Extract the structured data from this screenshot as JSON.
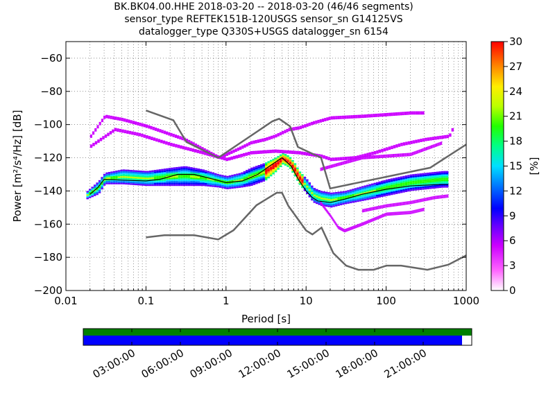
{
  "header": {
    "line1": "BK.BK04.00.HHE   2018-03-20 -- 2018-03-20  (46/46 segments)",
    "line2": "sensor_type REFTEK151B-120USGS sensor_sn G14125VS",
    "line3": "datalogger_type Q330S+USGS datalogger_sn 6154"
  },
  "chart_data": [
    {
      "type": "heatmap",
      "title": "",
      "xlabel": "Period [s]",
      "ylabel": "Power [m²/s⁴/Hz] [dB]",
      "x_scale": "log",
      "xlim": [
        0.01,
        1000
      ],
      "ylim": [
        -200,
        -50
      ],
      "x_ticks": [
        "0.01",
        "0.1",
        "1",
        "10",
        "100",
        "1000"
      ],
      "y_ticks": [
        "−200",
        "−180",
        "−160",
        "−140",
        "−120",
        "−100",
        "−80",
        "−60"
      ],
      "grid": true,
      "colorbar": {
        "label": "[%]",
        "range": [
          0,
          30
        ],
        "ticks": [
          "0",
          "3",
          "6",
          "9",
          "12",
          "15",
          "18",
          "21",
          "24",
          "27",
          "30"
        ]
      },
      "colors": {
        "nhnm_nlnm": "#666666",
        "mode_line": "#000000",
        "grid": "#000000"
      },
      "reference_curves": [
        {
          "name": "NHNM",
          "points": [
            [
              0.1,
              -91.5
            ],
            [
              0.22,
              -97.4
            ],
            [
              0.32,
              -110.5
            ],
            [
              0.8,
              -120
            ],
            [
              3.8,
              -98
            ],
            [
              4.6,
              -96.5
            ],
            [
              6.3,
              -101
            ],
            [
              7.9,
              -113.5
            ],
            [
              15.4,
              -120
            ],
            [
              20,
              -138.5
            ],
            [
              354.8,
              -126
            ],
            [
              1000,
              -112
            ]
          ]
        },
        {
          "name": "NLNM",
          "points": [
            [
              0.1,
              -168
            ],
            [
              0.17,
              -166.7
            ],
            [
              0.4,
              -166.7
            ],
            [
              0.8,
              -169.2
            ],
            [
              1.24,
              -163.7
            ],
            [
              2.4,
              -148.6
            ],
            [
              4.3,
              -141.1
            ],
            [
              5,
              -141.1
            ],
            [
              6,
              -149
            ],
            [
              10,
              -163.8
            ],
            [
              12,
              -166.2
            ],
            [
              15.6,
              -162.1
            ],
            [
              21.9,
              -177.5
            ],
            [
              31.6,
              -185
            ],
            [
              45,
              -187.5
            ],
            [
              70,
              -187.5
            ],
            [
              101,
              -185
            ],
            [
              154,
              -185
            ],
            [
              328,
              -187.5
            ],
            [
              600,
              -184.4
            ],
            [
              1000,
              -178.8
            ]
          ]
        }
      ],
      "mode_line": [
        [
          0.02,
          -142
        ],
        [
          0.025,
          -138
        ],
        [
          0.03,
          -133
        ],
        [
          0.05,
          -133.5
        ],
        [
          0.1,
          -134
        ],
        [
          0.15,
          -133
        ],
        [
          0.25,
          -130
        ],
        [
          0.4,
          -130
        ],
        [
          0.7,
          -133
        ],
        [
          1,
          -135
        ],
        [
          1.6,
          -134
        ],
        [
          2.5,
          -130
        ],
        [
          3.5,
          -125
        ],
        [
          5,
          -120
        ],
        [
          6.5,
          -125
        ],
        [
          8,
          -133
        ],
        [
          10,
          -140
        ],
        [
          12,
          -144
        ],
        [
          14,
          -146
        ],
        [
          20,
          -147
        ],
        [
          30,
          -145
        ],
        [
          50,
          -142
        ],
        [
          100,
          -139
        ],
        [
          200,
          -137
        ],
        [
          500,
          -136
        ],
        [
          600,
          -136
        ]
      ],
      "ppsd_bands": [
        {
          "name": "main",
          "points": [
            [
              0.018,
              -145,
              -140
            ],
            [
              0.025,
              -142,
              -134
            ],
            [
              0.03,
              -136,
              -129
            ],
            [
              0.05,
              -136,
              -127
            ],
            [
              0.1,
              -137,
              -128
            ],
            [
              0.2,
              -137,
              -126
            ],
            [
              0.3,
              -137,
              -125
            ],
            [
              0.5,
              -137,
              -127
            ],
            [
              0.8,
              -138,
              -130
            ],
            [
              1,
              -139,
              -131
            ],
            [
              1.5,
              -138,
              -129
            ],
            [
              2,
              -137,
              -126
            ],
            [
              3,
              -134,
              -123
            ],
            [
              4,
              -129,
              -120
            ],
            [
              5,
              -124,
              -117
            ],
            [
              6,
              -126,
              -119
            ],
            [
              7,
              -131,
              -123
            ],
            [
              8,
              -136,
              -128
            ],
            [
              10,
              -142,
              -133
            ],
            [
              12,
              -147,
              -138
            ],
            [
              15,
              -149,
              -140
            ],
            [
              20,
              -150,
              -141
            ],
            [
              30,
              -148,
              -140
            ],
            [
              50,
              -146,
              -137
            ],
            [
              100,
              -143,
              -133
            ],
            [
              200,
              -140,
              -130
            ],
            [
              500,
              -138,
              -128
            ],
            [
              600,
              -138,
              -128
            ]
          ]
        },
        {
          "name": "upper-branch",
          "points": [
            [
              0.02,
              -108,
              -106
            ],
            [
              0.03,
              -96,
              -94
            ],
            [
              0.05,
              -98,
              -96
            ],
            [
              0.1,
              -102,
              -100
            ],
            [
              0.3,
              -110,
              -108
            ],
            [
              0.8,
              -121,
              -119
            ],
            [
              1.5,
              -115,
              -113
            ],
            [
              2,
              -112,
              -110
            ],
            [
              3,
              -110,
              -108
            ],
            [
              4,
              -108,
              -106
            ],
            [
              6,
              -104,
              -102
            ],
            [
              8,
              -103,
              -101
            ],
            [
              12,
              -100,
              -98
            ],
            [
              20,
              -97,
              -95
            ],
            [
              50,
              -96,
              -94
            ],
            [
              100,
              -95,
              -93
            ],
            [
              200,
              -94,
              -92
            ],
            [
              300,
              -94,
              -92
            ]
          ]
        },
        {
          "name": "upper-branch-2",
          "points": [
            [
              0.02,
              -114,
              -112
            ],
            [
              0.04,
              -104,
              -102
            ],
            [
              0.08,
              -107,
              -105
            ],
            [
              0.2,
              -113,
              -111
            ],
            [
              0.5,
              -118,
              -116
            ],
            [
              1,
              -122,
              -120
            ],
            [
              2,
              -118,
              -116
            ],
            [
              4,
              -117,
              -115
            ],
            [
              8,
              -118,
              -116
            ],
            [
              15,
              -120,
              -118
            ],
            [
              20,
              -122,
              -120
            ],
            [
              40,
              -121,
              -119
            ],
            [
              70,
              -118,
              -116
            ],
            [
              150,
              -113,
              -111
            ],
            [
              300,
              -110,
              -108
            ],
            [
              600,
              -108,
              -106
            ],
            [
              700,
              -101,
              -99
            ]
          ]
        },
        {
          "name": "upper-branch-3",
          "points": [
            [
              15,
              -128,
              -126
            ],
            [
              25,
              -125,
              -123
            ],
            [
              50,
              -121,
              -119
            ],
            [
              100,
              -120,
              -118
            ],
            [
              200,
              -119,
              -117
            ],
            [
              500,
              -112,
              -110
            ]
          ]
        },
        {
          "name": "lower-branch",
          "points": [
            [
              15,
              -148,
              -146
            ],
            [
              20,
              -156,
              -154
            ],
            [
              25,
              -163,
              -161
            ],
            [
              30,
              -165,
              -163
            ],
            [
              50,
              -161,
              -159
            ],
            [
              100,
              -155,
              -153
            ],
            [
              200,
              -154,
              -152
            ],
            [
              300,
              -152,
              -150
            ]
          ]
        },
        {
          "name": "lower-branch-2",
          "points": [
            [
              50,
              -153,
              -151
            ],
            [
              100,
              -150,
              -148
            ],
            [
              200,
              -148,
              -146
            ],
            [
              400,
              -145,
              -143
            ],
            [
              600,
              -144,
              -142
            ]
          ]
        }
      ]
    },
    {
      "type": "timeline",
      "x_ticks": [
        "03:00:00",
        "06:00:00",
        "09:00:00",
        "12:00:00",
        "15:00:00",
        "18:00:00",
        "21:00:00"
      ],
      "data_coverage": 1.0,
      "processed_coverage": 0.975,
      "colors": {
        "data": "#008000",
        "processed": "#0000ff"
      }
    }
  ]
}
